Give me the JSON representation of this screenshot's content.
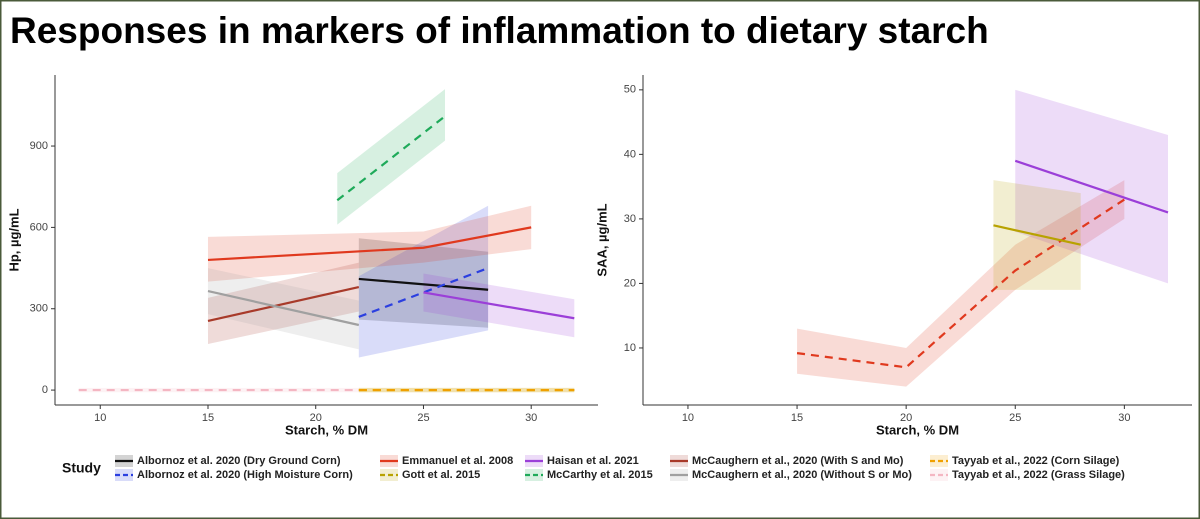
{
  "title": "Responses in markers of inflammation to dietary starch",
  "chart_data": [
    {
      "type": "line",
      "x_label": "Starch, % DM",
      "y_label": "Hp, µg/mL",
      "xlim": [
        7.9,
        33.1
      ],
      "ylim": [
        -55,
        1162
      ],
      "xticks": [
        10,
        15,
        20,
        25,
        30
      ],
      "yticks": [
        0,
        300,
        600,
        900
      ],
      "legend_title": "Study",
      "series": [
        {
          "name": "Albornoz et al. 2020 (Dry Ground Corn)",
          "color": "#111111",
          "dashed": false,
          "x": [
            22,
            28
          ],
          "values": [
            410,
            370
          ],
          "lower": [
            260,
            230
          ],
          "upper": [
            560,
            510
          ]
        },
        {
          "name": "Albornoz et al. 2020 (High Moisture Corn)",
          "color": "#2b3fe0",
          "dashed": true,
          "x": [
            22,
            28
          ],
          "values": [
            270,
            450
          ],
          "lower": [
            120,
            220
          ],
          "upper": [
            420,
            680
          ]
        },
        {
          "name": "Emmanuel et al. 2008",
          "color": "#e0391e",
          "dashed": false,
          "x": [
            15,
            25,
            30
          ],
          "values": [
            480,
            525,
            600
          ],
          "lower": [
            400,
            470,
            520
          ],
          "upper": [
            565,
            585,
            680
          ]
        },
        {
          "name": "Gott et al. 2015",
          "color": "#b8a200",
          "dashed": true,
          "x": [
            22,
            32
          ],
          "values": [
            0,
            0
          ],
          "lower": [
            -8,
            -8
          ],
          "upper": [
            8,
            8
          ]
        },
        {
          "name": "Haisan et al. 2021",
          "color": "#9b3fd8",
          "dashed": false,
          "x": [
            25,
            32
          ],
          "values": [
            360,
            265
          ],
          "lower": [
            290,
            195
          ],
          "upper": [
            430,
            335
          ]
        },
        {
          "name": "McCarthy et al. 2015",
          "color": "#1faa5a",
          "dashed": true,
          "x": [
            21,
            26
          ],
          "values": [
            700,
            1010
          ],
          "lower": [
            610,
            920
          ],
          "upper": [
            800,
            1110
          ]
        },
        {
          "name": "McCaughern et al., 2020 (With S and Mo)",
          "color": "#a83a2a",
          "dashed": false,
          "x": [
            15,
            22
          ],
          "values": [
            255,
            380
          ],
          "lower": [
            170,
            290
          ],
          "upper": [
            340,
            470
          ]
        },
        {
          "name": "McCaughern et al., 2020 (Without S or Mo)",
          "color": "#a0a0a0",
          "dashed": false,
          "x": [
            15,
            22
          ],
          "values": [
            365,
            240
          ],
          "lower": [
            280,
            150
          ],
          "upper": [
            450,
            330
          ]
        },
        {
          "name": "Tayyab et al., 2022 (Corn Silage)",
          "color": "#f0a000",
          "dashed": true,
          "x": [
            22,
            32
          ],
          "values": [
            0,
            0
          ],
          "lower": [
            -8,
            -8
          ],
          "upper": [
            8,
            8
          ]
        },
        {
          "name": "Tayyab et al., 2022 (Grass Silage)",
          "color": "#f4b6c2",
          "dashed": true,
          "x": [
            9,
            22
          ],
          "values": [
            0,
            0
          ],
          "lower": [
            -8,
            -8
          ],
          "upper": [
            8,
            8
          ]
        }
      ]
    },
    {
      "type": "line",
      "x_label": "Starch, % DM",
      "y_label": "SAA, µg/mL",
      "xlim": [
        7.94,
        33.1
      ],
      "ylim": [
        1.16,
        52.3
      ],
      "xticks": [
        10,
        15,
        20,
        25,
        30
      ],
      "yticks": [
        10,
        20,
        30,
        40,
        50
      ],
      "series": [
        {
          "color": "#e0391e",
          "dashed": true,
          "x": [
            15,
            20,
            25,
            30
          ],
          "values": [
            9.2,
            7,
            22,
            33
          ],
          "lower": [
            6,
            4,
            19,
            30
          ],
          "upper": [
            13,
            10,
            26,
            36
          ]
        },
        {
          "color": "#9b3fd8",
          "dashed": false,
          "x": [
            25,
            32
          ],
          "values": [
            39,
            31
          ],
          "lower": [
            28,
            20
          ],
          "upper": [
            50,
            43
          ]
        },
        {
          "color": "#b8a200",
          "dashed": false,
          "x": [
            24,
            28
          ],
          "values": [
            29,
            26
          ],
          "lower": [
            19,
            19
          ],
          "upper": [
            36,
            34
          ]
        }
      ]
    }
  ]
}
